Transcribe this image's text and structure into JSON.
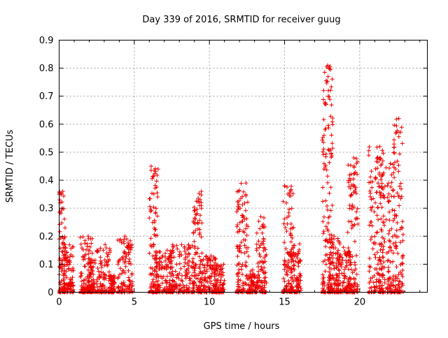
{
  "chart_data": {
    "type": "scatter",
    "title": "Day 339 of 2016, SRMTID for receiver guug",
    "xlabel": "GPS time / hours",
    "ylabel": "SRMTID / TECUs",
    "xlim": [
      0,
      24.5
    ],
    "ylim": [
      0,
      0.9
    ],
    "xticks": [
      0,
      5,
      10,
      15,
      20
    ],
    "xtick_labels": [
      "0",
      "5",
      "10",
      "15",
      "20"
    ],
    "yticks": [
      0,
      0.1,
      0.2,
      0.3,
      0.4,
      0.5,
      0.6,
      0.7,
      0.8,
      0.9
    ],
    "ytick_labels": [
      "0",
      "0.1",
      "0.2",
      "0.3",
      "0.4",
      "0.5",
      "0.6",
      "0.7",
      "0.8",
      "0.9"
    ],
    "grid": true,
    "marker": "plus",
    "color": "#ee0000",
    "clusters": [
      {
        "x": [
          0.0,
          0.4
        ],
        "peak": 0.36
      },
      {
        "x": [
          0.3,
          1.0
        ],
        "peak": 0.17
      },
      {
        "x": [
          1.4,
          2.2
        ],
        "peak": 0.2
      },
      {
        "x": [
          1.9,
          2.4
        ],
        "peak": 0.12
      },
      {
        "x": [
          2.5,
          3.4
        ],
        "peak": 0.17
      },
      {
        "x": [
          3.4,
          3.7
        ],
        "peak": 0.06
      },
      {
        "x": [
          3.9,
          4.9
        ],
        "peak": 0.2
      },
      {
        "x": [
          6.0,
          6.6
        ],
        "peak": 0.45
      },
      {
        "x": [
          6.4,
          7.6
        ],
        "peak": 0.15
      },
      {
        "x": [
          7.4,
          9.0
        ],
        "peak": 0.17
      },
      {
        "x": [
          8.9,
          9.5
        ],
        "peak": 0.36
      },
      {
        "x": [
          9.4,
          10.5
        ],
        "peak": 0.13
      },
      {
        "x": [
          10.3,
          11.0
        ],
        "peak": 0.1
      },
      {
        "x": [
          11.8,
          12.6
        ],
        "peak": 0.39
      },
      {
        "x": [
          12.5,
          13.1
        ],
        "peak": 0.08
      },
      {
        "x": [
          13.1,
          13.8
        ],
        "peak": 0.27
      },
      {
        "x": [
          14.9,
          15.6
        ],
        "peak": 0.38
      },
      {
        "x": [
          15.4,
          16.1
        ],
        "peak": 0.18
      },
      {
        "x": [
          17.5,
          18.2
        ],
        "peak": 0.81
      },
      {
        "x": [
          17.9,
          18.7
        ],
        "peak": 0.2
      },
      {
        "x": [
          18.5,
          19.4
        ],
        "peak": 0.16
      },
      {
        "x": [
          19.2,
          19.9
        ],
        "peak": 0.48
      },
      {
        "x": [
          20.6,
          21.6
        ],
        "peak": 0.52
      },
      {
        "x": [
          21.3,
          22.2
        ],
        "peak": 0.48
      },
      {
        "x": [
          22.2,
          22.9
        ],
        "peak": 0.62
      }
    ]
  }
}
